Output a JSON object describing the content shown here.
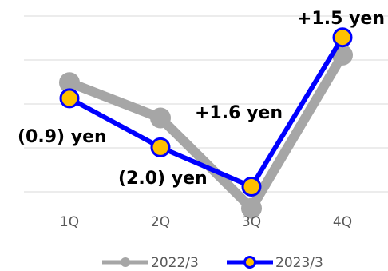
{
  "chart_data": {
    "type": "line",
    "categories": [
      "1Q",
      "2Q",
      "3Q",
      "4Q"
    ],
    "series": [
      {
        "name": "2022/3",
        "values": [
          0.4,
          -0.5,
          -2.8,
          1.1
        ],
        "color": "#A6A6A6"
      },
      {
        "name": "2023/3",
        "values": [
          0.0,
          -1.25,
          -2.25,
          1.55
        ],
        "color": "#0000FF",
        "marker_color": "#FFC000"
      }
    ],
    "annotations": [
      "+1.5 yen",
      "+1.6 yen",
      "(0.9) yen",
      "(2.0) yen"
    ],
    "ylim": [
      -3.5,
      2.5
    ],
    "grid": true,
    "legend": "bottom"
  }
}
